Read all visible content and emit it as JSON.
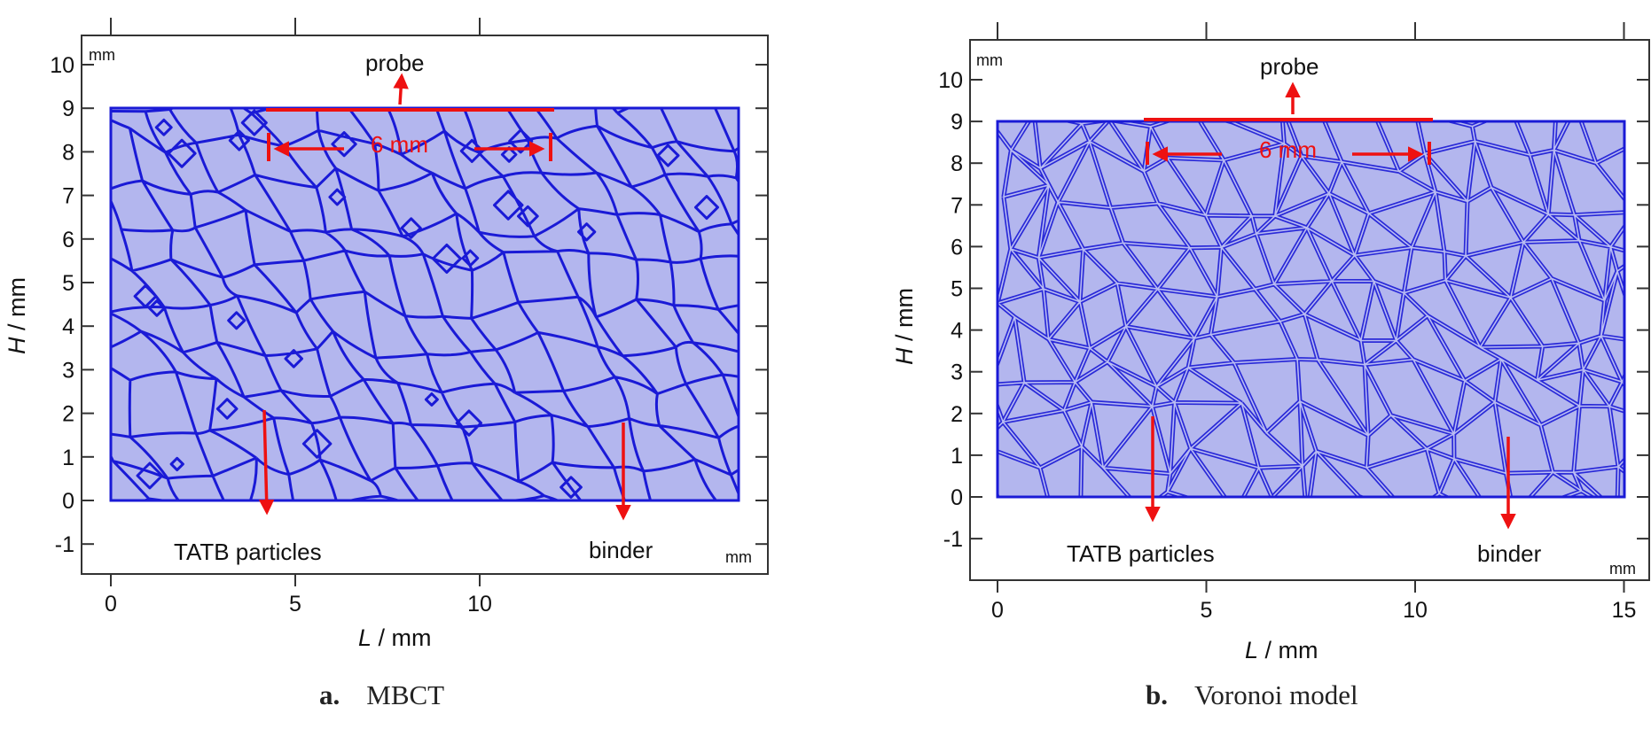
{
  "panels": [
    {
      "id": "a",
      "caption_letter": "a.",
      "caption_text": "MBCT",
      "unit_top": "mm",
      "unit_corner": "mm",
      "xlabel_var": "L",
      "xlabel_unit": " / mm",
      "ylabel_var": "H",
      "ylabel_unit": " / mm",
      "xticks": [
        "0",
        "5",
        "10"
      ],
      "yticks": [
        "-1",
        "0",
        "1",
        "2",
        "3",
        "4",
        "5",
        "6",
        "7",
        "8",
        "9",
        "10"
      ],
      "probe_label": "probe",
      "span_label": "6 mm",
      "particles_label": "TATB particles",
      "binder_label": "binder",
      "fill_color": "#b3b6ee",
      "boundary_color": "#1a1ad6",
      "annotation_color": "#ee1111"
    },
    {
      "id": "b",
      "caption_letter": "b.",
      "caption_text": "Voronoi model",
      "unit_top": "mm",
      "unit_corner": "mm",
      "xlabel_var": "L",
      "xlabel_unit": " / mm",
      "ylabel_var": "H",
      "ylabel_unit": " / mm",
      "xticks": [
        "0",
        "5",
        "10",
        "15"
      ],
      "yticks": [
        "-1",
        "0",
        "1",
        "2",
        "3",
        "4",
        "5",
        "6",
        "7",
        "8",
        "9",
        "10"
      ],
      "probe_label": "probe",
      "span_label": "6 mm",
      "particles_label": "TATB particles",
      "binder_label": "binder",
      "fill_color": "#b3b6ee",
      "boundary_color": "#1a1ad6",
      "annotation_color": "#ee1111"
    }
  ]
}
